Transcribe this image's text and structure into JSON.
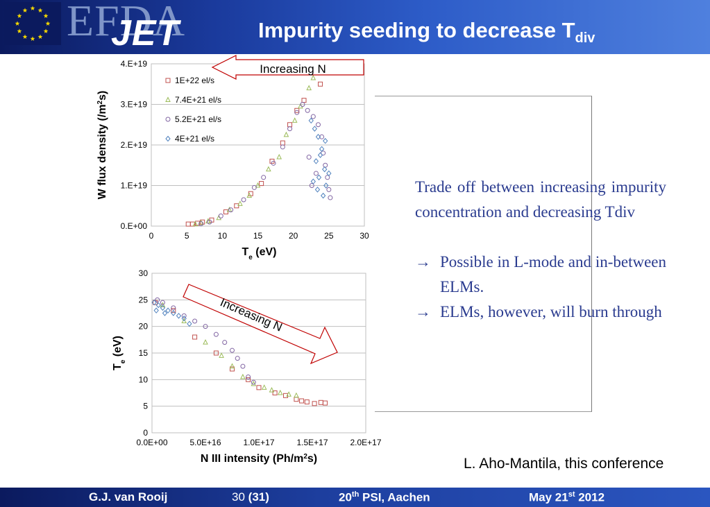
{
  "header": {
    "title": "Impurity seeding to decrease T",
    "title_sub": "div",
    "logo_efda": "EFDA",
    "logo_jet": "JET",
    "bg_color": "#1a3a9c"
  },
  "top_arrow_label": "Increasing N",
  "bottom_arrow_label": "Increasing N",
  "body": {
    "paragraph": "Trade off between increasing impurity concentration and decreasing Tdiv",
    "bullets": [
      {
        "arrow": "→",
        "text": "Possible in L-mode and in-between ELMs."
      },
      {
        "arrow": "→",
        "text": " ELMs, however, will burn through"
      }
    ],
    "text_color": "#2a3b8f"
  },
  "citation": "L. Aho-Mantila, this conference",
  "footer": {
    "author": "G.J. van Rooij",
    "page": "30",
    "page_total": "(31)",
    "conf_num": "20",
    "conf_sup": "th",
    "conf_rest": " PSI, Aachen",
    "date_pre": "May 21",
    "date_sup": "st",
    "date_post": " 2012"
  },
  "chart_data": [
    {
      "type": "scatter",
      "ylabel": "W flux density (/m2s)",
      "xlabel": "Te (eV)",
      "xlim": [
        0,
        30
      ],
      "ylim": [
        0,
        4e+19
      ],
      "xticks": [
        "0",
        "5",
        "10",
        "15",
        "20",
        "25",
        "30"
      ],
      "yticks": [
        "0.E+00",
        "1.E+19",
        "2.E+19",
        "3.E+19",
        "4.E+19"
      ],
      "grid": "horizontal",
      "legend_position": "top-left",
      "series": [
        {
          "name": "1E+22 el/s",
          "marker": "square",
          "color": "#c0504d",
          "points": [
            [
              5.2,
              5e+17
            ],
            [
              5.8,
              5e+17
            ],
            [
              6.5,
              7e+17
            ],
            [
              7.2,
              1e+18
            ],
            [
              8.5,
              1.5e+18
            ],
            [
              10.5,
              3.5e+18
            ],
            [
              12,
              5e+18
            ],
            [
              14,
              8e+18
            ],
            [
              15.5,
              1.05e+19
            ],
            [
              17,
              1.6e+19
            ],
            [
              18.5,
              2.05e+19
            ],
            [
              19.5,
              2.5e+19
            ],
            [
              20.5,
              2.85e+19
            ],
            [
              21.5,
              3.1e+19
            ],
            [
              23.8,
              3.5e+19
            ]
          ]
        },
        {
          "name": "7.4E+21 el/s",
          "marker": "triangle",
          "color": "#9bbb59",
          "points": [
            [
              6.2,
              5e+17
            ],
            [
              7,
              8e+17
            ],
            [
              8,
              1.2e+18
            ],
            [
              9.5,
              2e+18
            ],
            [
              11,
              4e+18
            ],
            [
              12.5,
              5.5e+18
            ],
            [
              13.8,
              7.5e+18
            ],
            [
              15,
              1e+19
            ],
            [
              16.5,
              1.4e+19
            ],
            [
              18,
              1.7e+19
            ],
            [
              19,
              2.25e+19
            ],
            [
              20.2,
              2.6e+19
            ],
            [
              21,
              2.95e+19
            ],
            [
              22.2,
              3.4e+19
            ],
            [
              22.8,
              3.65e+19
            ]
          ]
        },
        {
          "name": "5.2E+21 el/s",
          "marker": "circle",
          "color": "#8064a2",
          "points": [
            [
              7,
              6e+17
            ],
            [
              8.2,
              1e+18
            ],
            [
              9.8,
              2.5e+18
            ],
            [
              11.2,
              4e+18
            ],
            [
              13,
              6.5e+18
            ],
            [
              14.5,
              9.5e+18
            ],
            [
              15.8,
              1.2e+19
            ],
            [
              17.2,
              1.55e+19
            ],
            [
              18.5,
              1.95e+19
            ],
            [
              19.5,
              2.4e+19
            ],
            [
              20.5,
              2.8e+19
            ],
            [
              21.3,
              3e+19
            ],
            [
              22,
              2.85e+19
            ],
            [
              22.8,
              2.7e+19
            ],
            [
              23.5,
              2.5e+19
            ],
            [
              24,
              2.2e+19
            ],
            [
              24.2,
              1.8e+19
            ],
            [
              24.5,
              1.5e+19
            ],
            [
              24.8,
              1.2e+19
            ],
            [
              25,
              9e+18
            ],
            [
              25.2,
              7e+18
            ],
            [
              23.2,
              1.3e+19
            ],
            [
              22.6,
              1e+19
            ],
            [
              22.2,
              1.7e+19
            ]
          ]
        },
        {
          "name": "4E+21 el/s",
          "marker": "diamond",
          "color": "#4f81bd",
          "points": [
            [
              22.5,
              2.6e+19
            ],
            [
              23,
              2.4e+19
            ],
            [
              23.5,
              2.2e+19
            ],
            [
              24,
              1.9e+19
            ],
            [
              23.2,
              1.6e+19
            ],
            [
              24.4,
              1.4e+19
            ],
            [
              23.6,
              1.2e+19
            ],
            [
              24.6,
              1e+19
            ],
            [
              23.4,
              9e+18
            ],
            [
              24.2,
              7.5e+18
            ],
            [
              22.8,
              1.1e+19
            ],
            [
              25,
              1.3e+19
            ],
            [
              23.8,
              1.75e+19
            ],
            [
              24.5,
              2.1e+19
            ]
          ]
        }
      ]
    },
    {
      "type": "scatter",
      "ylabel": "Te (eV)",
      "xlabel": "N III intensity (Ph/m2s)",
      "xlim": [
        0,
        2e+17
      ],
      "ylim": [
        0,
        30
      ],
      "xticks": [
        "0.0E+00",
        "5.0E+16",
        "1.0E+17",
        "1.5E+17",
        "2.0E+17"
      ],
      "yticks": [
        "0",
        "5",
        "10",
        "15",
        "20",
        "25",
        "30"
      ],
      "grid": "horizontal",
      "series": [
        {
          "name": "1E+22 el/s",
          "marker": "square",
          "color": "#c0504d",
          "points": [
            [
              3000000000000000.0,
              24.5
            ],
            [
              2e+16,
              23
            ],
            [
              4e+16,
              18
            ],
            [
              6e+16,
              15
            ],
            [
              7.5e+16,
              12
            ],
            [
              9e+16,
              10
            ],
            [
              1e+17,
              8.5
            ],
            [
              1.15e+17,
              7.5
            ],
            [
              1.25e+17,
              7
            ],
            [
              1.35e+17,
              6.3
            ],
            [
              1.45e+17,
              5.8
            ],
            [
              1.52e+17,
              5.5
            ],
            [
              1.58e+17,
              5.7
            ],
            [
              1.62e+17,
              5.6
            ],
            [
              1.4e+17,
              6.0
            ]
          ]
        },
        {
          "name": "7.4E+21 el/s",
          "marker": "triangle",
          "color": "#9bbb59",
          "points": [
            [
              1e+16,
              24
            ],
            [
              3e+16,
              21
            ],
            [
              5e+16,
              17
            ],
            [
              6.5e+16,
              14.5
            ],
            [
              7.5e+16,
              12.5
            ],
            [
              8.5e+16,
              10.5
            ],
            [
              9.5e+16,
              9.2
            ],
            [
              1.05e+17,
              8.5
            ],
            [
              1.12e+17,
              8
            ],
            [
              1.2e+17,
              7.5
            ],
            [
              1.28e+17,
              7.2
            ],
            [
              1.35e+17,
              7
            ]
          ]
        },
        {
          "name": "5.2E+21 el/s",
          "marker": "circle",
          "color": "#8064a2",
          "points": [
            [
              5000000000000000.0,
              25
            ],
            [
              1e+16,
              24.5
            ],
            [
              2e+16,
              23.5
            ],
            [
              3e+16,
              22
            ],
            [
              4e+16,
              21
            ],
            [
              5e+16,
              20
            ],
            [
              6e+16,
              18.5
            ],
            [
              6.8e+16,
              17
            ],
            [
              7.5e+16,
              15.5
            ],
            [
              8e+16,
              14
            ],
            [
              8.5e+16,
              12.5
            ],
            [
              9e+16,
              10.5
            ],
            [
              9.5e+16,
              9.5
            ]
          ]
        },
        {
          "name": "4E+21 el/s",
          "marker": "diamond",
          "color": "#4f81bd",
          "points": [
            [
              2000000000000000.0,
              24.5
            ],
            [
              6000000000000000.0,
              24
            ],
            [
              1e+16,
              23.5
            ],
            [
              1.5e+16,
              23
            ],
            [
              2e+16,
              22.5
            ],
            [
              2.5e+16,
              22
            ],
            [
              3e+16,
              21.5
            ],
            [
              3.5e+16,
              20.5
            ],
            [
              1.2e+16,
              22.5
            ],
            [
              4000000000000000.0,
              23
            ]
          ]
        }
      ]
    }
  ]
}
